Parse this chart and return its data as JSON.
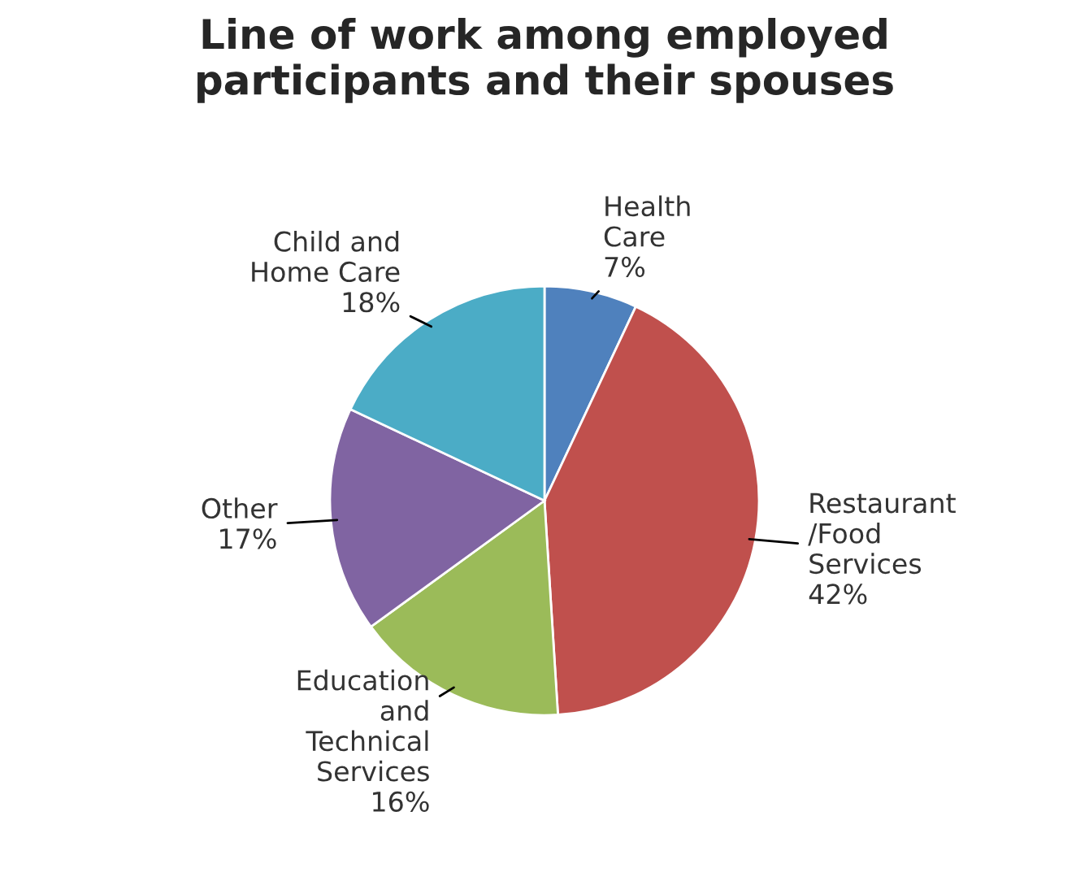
{
  "chart_data": {
    "type": "pie",
    "title": "Line of work among employed\nparticipants and their spouses",
    "categories": [
      "Health\nCare",
      "Restaurant\n/Food\nServices",
      "Education\nand\nTechnical\nServices",
      "Other",
      "Child and\nHome Care"
    ],
    "values": [
      7,
      42,
      16,
      17,
      18
    ],
    "colors": [
      "#4f81bd",
      "#c0504d",
      "#9bbb59",
      "#8064a2",
      "#4bacc6"
    ],
    "value_labels": [
      "7%",
      "42%",
      "16%",
      "17%",
      "18%"
    ]
  }
}
